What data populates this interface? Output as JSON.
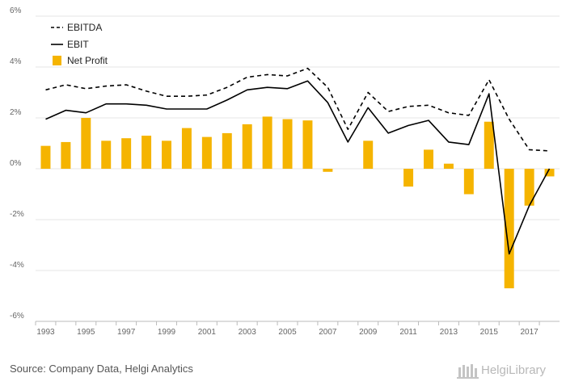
{
  "chart_data": {
    "type": "bar",
    "title": "",
    "xlabel": "",
    "ylabel": "",
    "y_unit": "%",
    "ylim": [
      -6,
      6
    ],
    "yticks": [
      6,
      4,
      2,
      0,
      -2,
      -4,
      -6
    ],
    "ytick_labels": [
      "6%",
      "4%",
      "2%",
      "0%",
      "-2%",
      "-4%",
      "-6%"
    ],
    "categories": [
      "1993",
      "1994",
      "1995",
      "1996",
      "1997",
      "1998",
      "1999",
      "2000",
      "2001",
      "2002",
      "2003",
      "2004",
      "2005",
      "2006",
      "2007",
      "2008",
      "2009",
      "2010",
      "2011",
      "2012",
      "2013",
      "2014",
      "2015",
      "2016",
      "2017",
      "2018"
    ],
    "xtick_labels": [
      "1993",
      "",
      "1995",
      "",
      "1997",
      "",
      "1999",
      "",
      "2001",
      "",
      "2003",
      "",
      "2005",
      "",
      "2007",
      "",
      "2009",
      "",
      "2011",
      "",
      "2013",
      "",
      "2015",
      "",
      "2017",
      ""
    ],
    "grid": true,
    "legend_position": "top-left",
    "series": [
      {
        "name": "EBITDA",
        "type": "line",
        "style": "dashed",
        "color": "#000000",
        "values": [
          3.1,
          3.3,
          3.15,
          3.25,
          3.3,
          3.05,
          2.85,
          2.85,
          2.9,
          3.2,
          3.6,
          3.7,
          3.65,
          3.95,
          3.2,
          1.55,
          3.0,
          2.25,
          2.45,
          2.5,
          2.2,
          2.1,
          3.5,
          1.95,
          0.75,
          0.7
        ]
      },
      {
        "name": "EBIT",
        "type": "line",
        "style": "solid",
        "color": "#000000",
        "values": [
          1.95,
          2.3,
          2.2,
          2.55,
          2.55,
          2.5,
          2.35,
          2.35,
          2.35,
          2.7,
          3.1,
          3.2,
          3.15,
          3.45,
          2.6,
          1.05,
          2.4,
          1.4,
          1.7,
          1.9,
          1.05,
          0.95,
          2.95,
          -3.35,
          -1.45,
          0.0
        ]
      },
      {
        "name": "Net Profit",
        "type": "bar",
        "color": "#f5b400",
        "values": [
          0.9,
          1.05,
          2.0,
          1.1,
          1.2,
          1.3,
          1.1,
          1.6,
          1.25,
          1.4,
          1.75,
          2.05,
          1.95,
          1.9,
          -0.12,
          null,
          1.1,
          null,
          -0.7,
          0.75,
          0.2,
          -1.0,
          1.85,
          -4.7,
          -1.45,
          -0.3
        ]
      }
    ]
  },
  "footer": {
    "source": "Source: Company Data, Helgi Analytics",
    "brand": "HelgiLibrary"
  }
}
